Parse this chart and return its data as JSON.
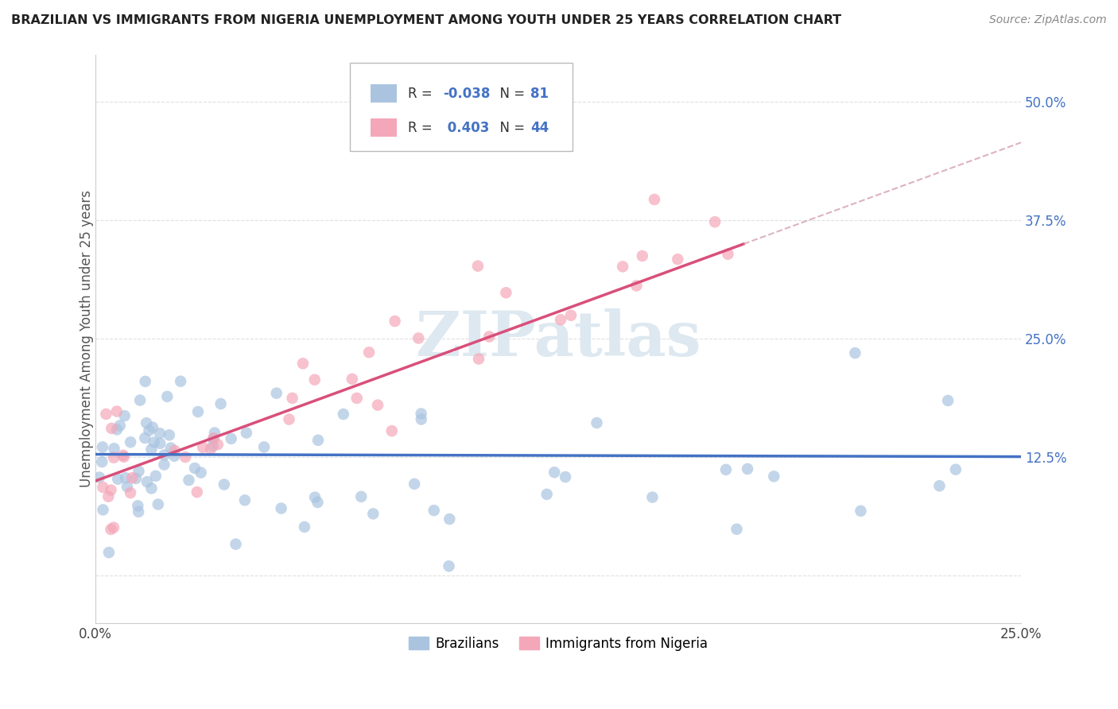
{
  "title": "BRAZILIAN VS IMMIGRANTS FROM NIGERIA UNEMPLOYMENT AMONG YOUTH UNDER 25 YEARS CORRELATION CHART",
  "source": "Source: ZipAtlas.com",
  "ylabel": "Unemployment Among Youth under 25 years",
  "xlim": [
    0.0,
    0.25
  ],
  "ylim": [
    -0.05,
    0.55
  ],
  "x_ticks": [
    0.0,
    0.05,
    0.1,
    0.15,
    0.2,
    0.25
  ],
  "x_tick_labels": [
    "0.0%",
    "",
    "",
    "",
    "",
    "25.0%"
  ],
  "y_ticks": [
    0.0,
    0.125,
    0.25,
    0.375,
    0.5
  ],
  "y_tick_labels": [
    "",
    "12.5%",
    "25.0%",
    "37.5%",
    "50.0%"
  ],
  "legend_label1": "Brazilians",
  "legend_label2": "Immigrants from Nigeria",
  "R1": -0.038,
  "N1": 81,
  "R2": 0.403,
  "N2": 44,
  "color_brazil": "#aac4e0",
  "color_nigeria": "#f4a7b9",
  "line_color_brazil": "#4472c4",
  "line_color_nigeria": "#d94f7a",
  "line_color_dashed": "#d4a0b0",
  "watermark_color": "#dde8f0",
  "background_color": "#ffffff",
  "grid_color": "#cccccc",
  "title_color": "#222222",
  "source_color": "#888888",
  "tick_color_y": "#4472c4",
  "tick_color_x": "#444444"
}
